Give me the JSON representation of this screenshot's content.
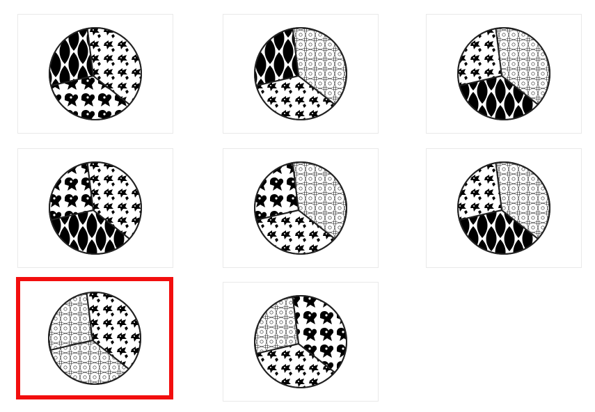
{
  "selection_color": "#f20e0e",
  "selected_index": 6,
  "pattern_names": {
    "leaf": "black-leaf-pattern",
    "floral": "floral-outline-pattern",
    "fish": "small-fish-pattern",
    "blob": "large-black-blob-pattern"
  },
  "tiles": [
    {
      "name": "puzzle-tile-1",
      "sectors": [
        "fish",
        "blob",
        "leaf"
      ]
    },
    {
      "name": "puzzle-tile-2",
      "sectors": [
        "floral",
        "fish",
        "leaf"
      ]
    },
    {
      "name": "puzzle-tile-3",
      "sectors": [
        "floral",
        "leaf",
        "fish"
      ]
    },
    {
      "name": "puzzle-tile-4",
      "sectors": [
        "fish",
        "leaf",
        "blob"
      ]
    },
    {
      "name": "puzzle-tile-5",
      "sectors": [
        "floral",
        "fish",
        "blob"
      ]
    },
    {
      "name": "puzzle-tile-6",
      "sectors": [
        "floral",
        "leaf",
        "fish"
      ]
    },
    {
      "name": "puzzle-tile-7",
      "sectors": [
        "fish",
        "floral",
        "floral"
      ]
    },
    {
      "name": "puzzle-tile-8",
      "sectors": [
        "blob",
        "fish",
        "floral"
      ]
    }
  ]
}
